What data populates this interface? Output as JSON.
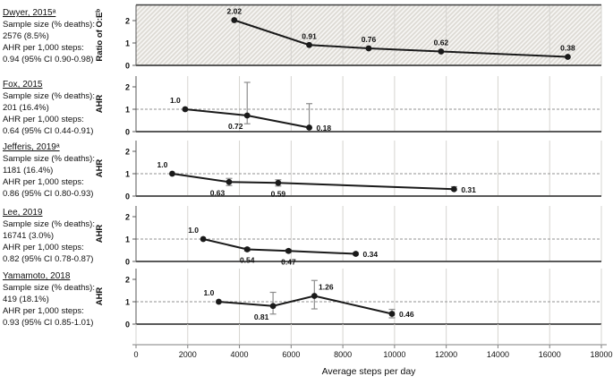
{
  "colors": {
    "line": "#1a1a1a",
    "grid": "#d6d4d0",
    "reference_dash": "#a6a6a6",
    "zero_line": "#595959",
    "error_bar": "#8c8c8c",
    "hatch_line": "#dcd9d3",
    "hatch_bg": "#f5f4f2",
    "x_axis_line": "#bfbfbf"
  },
  "chart_data": {
    "type": "line",
    "xlabel": "Average steps per day",
    "xlim": [
      0,
      18000
    ],
    "x_ticks": [
      0,
      2000,
      4000,
      6000,
      8000,
      10000,
      12000,
      14000,
      16000,
      18000
    ],
    "grid": true,
    "panels": [
      {
        "study": "Dwyer, 2015ᵃ",
        "info_lines": [
          "Sample size (% deaths):",
          "2576 (8.5%)",
          "AHR per 1,000 steps:",
          "0.94 (95% CI 0.90-0.98)"
        ],
        "ylabel": "Ratio of O:Eᵇ",
        "y_ticks": [
          2,
          1,
          0
        ],
        "ylim": [
          0,
          2.7
        ],
        "hatched": true,
        "dashed_reference_at": null,
        "points": [
          {
            "x": 3800,
            "y": 2.02,
            "label": "2.02",
            "label_pos": "above",
            "ci": null
          },
          {
            "x": 6700,
            "y": 0.91,
            "label": "0.91",
            "label_pos": "above",
            "ci": null
          },
          {
            "x": 9000,
            "y": 0.76,
            "label": "0.76",
            "label_pos": "above",
            "ci": null
          },
          {
            "x": 11800,
            "y": 0.62,
            "label": "0.62",
            "label_pos": "above",
            "ci": null
          },
          {
            "x": 16700,
            "y": 0.38,
            "label": "0.38",
            "label_pos": "above",
            "ci": null
          }
        ]
      },
      {
        "study": "Fox, 2015",
        "info_lines": [
          "Sample size (% deaths):",
          "201 (16.4%)",
          "AHR per 1,000 steps:",
          "0.64 (95% CI 0.44-0.91)"
        ],
        "ylabel": "AHR",
        "y_ticks": [
          2,
          1,
          0
        ],
        "ylim": [
          0,
          2.48
        ],
        "hatched": false,
        "dashed_reference_at": 1,
        "points": [
          {
            "x": 1900,
            "y": 1.0,
            "label": "1.0",
            "label_pos": "above-left",
            "ci": null
          },
          {
            "x": 4300,
            "y": 0.72,
            "label": "0.72",
            "label_pos": "below-left",
            "ci": [
              0.35,
              2.2
            ]
          },
          {
            "x": 6700,
            "y": 0.18,
            "label": "0.18",
            "label_pos": "right",
            "ci": [
              0.18,
              1.25
            ]
          }
        ]
      },
      {
        "study": "Jefferis, 2019ᵃ",
        "info_lines": [
          "Sample size (% deaths):",
          "1181 (16.4%)",
          "AHR per 1,000 steps:",
          "0.86 (95% CI 0.80-0.93)"
        ],
        "ylabel": "AHR",
        "y_ticks": [
          2,
          1,
          0
        ],
        "ylim": [
          0,
          2.48
        ],
        "hatched": false,
        "dashed_reference_at": 1,
        "points": [
          {
            "x": 1400,
            "y": 1.0,
            "label": "1.0",
            "label_pos": "above-left",
            "ci": null
          },
          {
            "x": 3600,
            "y": 0.63,
            "label": "0.63",
            "label_pos": "below-left",
            "ci": [
              0.47,
              0.79
            ]
          },
          {
            "x": 5500,
            "y": 0.59,
            "label": "0.59",
            "label_pos": "below",
            "ci": [
              0.45,
              0.73
            ]
          },
          {
            "x": 12300,
            "y": 0.31,
            "label": "0.31",
            "label_pos": "right",
            "ci": [
              0.26,
              0.42
            ]
          }
        ]
      },
      {
        "study": "Lee, 2019",
        "info_lines": [
          "Sample size (% deaths):",
          "16741 (3.0%)",
          "AHR per 1,000 steps:",
          "0.82 (95% CI 0.78-0.87)"
        ],
        "ylabel": "AHR",
        "y_ticks": [
          2,
          1,
          0
        ],
        "ylim": [
          0,
          2.48
        ],
        "hatched": false,
        "dashed_reference_at": 1,
        "points": [
          {
            "x": 2600,
            "y": 1.0,
            "label": "1.0",
            "label_pos": "above-left",
            "ci": null
          },
          {
            "x": 4300,
            "y": 0.54,
            "label": "0.54",
            "label_pos": "below",
            "ci": [
              0.47,
              0.61
            ]
          },
          {
            "x": 5900,
            "y": 0.47,
            "label": "0.47",
            "label_pos": "below",
            "ci": [
              0.4,
              0.54
            ]
          },
          {
            "x": 8500,
            "y": 0.34,
            "label": "0.34",
            "label_pos": "right",
            "ci": [
              0.29,
              0.39
            ]
          }
        ]
      },
      {
        "study": "Yamamoto, 2018",
        "info_lines": [
          "Sample size (% deaths):",
          "419 (18.1%)",
          "AHR per 1,000 steps:",
          "0.93 (95% CI 0.85-1.01)"
        ],
        "ylabel": "AHR",
        "y_ticks": [
          2,
          1,
          0
        ],
        "ylim": [
          0,
          2.48
        ],
        "hatched": false,
        "dashed_reference_at": 1,
        "points": [
          {
            "x": 3200,
            "y": 1.0,
            "label": "1.0",
            "label_pos": "above-left",
            "ci": null
          },
          {
            "x": 5300,
            "y": 0.81,
            "label": "0.81",
            "label_pos": "below-left",
            "ci": [
              0.45,
              1.42
            ]
          },
          {
            "x": 6900,
            "y": 1.26,
            "label": "1.26",
            "label_pos": "above-right",
            "ci": [
              0.68,
              1.95
            ]
          },
          {
            "x": 9900,
            "y": 0.46,
            "label": "0.46",
            "label_pos": "right",
            "ci": [
              0.28,
              0.66
            ]
          }
        ]
      }
    ]
  }
}
